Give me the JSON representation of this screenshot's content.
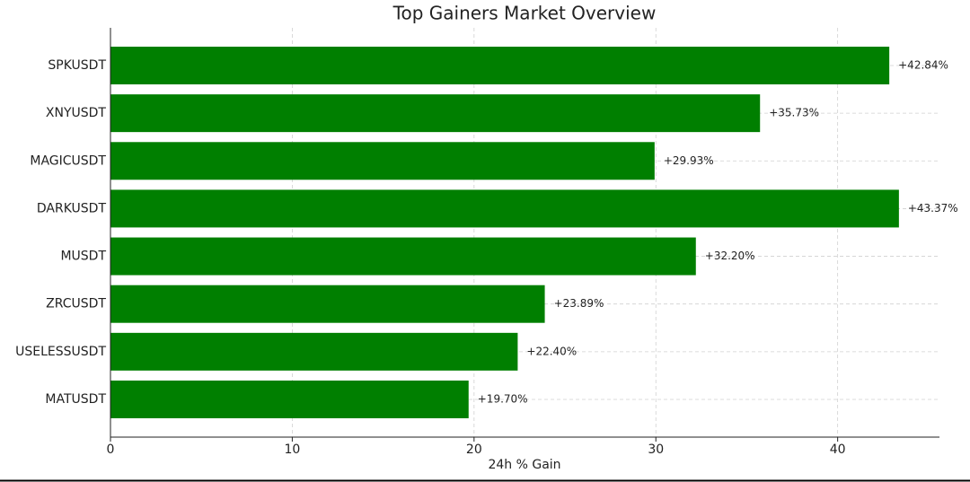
{
  "chart_data": {
    "type": "bar",
    "orientation": "horizontal",
    "title": "Top Gainers Market Overview",
    "x_label": "24h % Gain",
    "categories": [
      "SPKUSDT",
      "XNYUSDT",
      "MAGICUSDT",
      "DARKUSDT",
      "MUSDT",
      "ZRCUSDT",
      "USELESSUSDT",
      "MATUSDT"
    ],
    "values": [
      42.84,
      35.73,
      29.93,
      43.37,
      32.2,
      23.89,
      22.4,
      19.7
    ],
    "value_labels": [
      "+42.84%",
      "+35.73%",
      "+29.93%",
      "+43.37%",
      "+32.20%",
      "+23.89%",
      "+22.40%",
      "+19.70%"
    ],
    "color": "#007f00",
    "xlim": [
      0,
      45.6
    ],
    "xticks": [
      0,
      10,
      20,
      30,
      40
    ],
    "grid": true
  }
}
